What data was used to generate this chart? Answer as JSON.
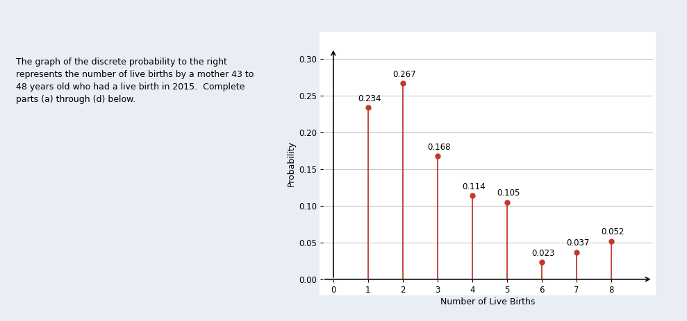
{
  "x_values": [
    1,
    2,
    3,
    4,
    5,
    6,
    7,
    8
  ],
  "y_values": [
    0.234,
    0.267,
    0.168,
    0.114,
    0.105,
    0.023,
    0.037,
    0.052
  ],
  "labels": [
    "0.234",
    "0.267",
    "0.168",
    "0.114",
    "0.105",
    "0.023",
    "0.037",
    "0.052"
  ],
  "stem_color": "#c0392b",
  "xlabel": "Number of Live Births",
  "ylabel": "Probability",
  "xlim": [
    -0.3,
    9.2
  ],
  "ylim": [
    0.0,
    0.315
  ],
  "yticks": [
    0.0,
    0.05,
    0.1,
    0.15,
    0.2,
    0.25,
    0.3
  ],
  "ytick_labels": [
    "0.00",
    "0.05",
    "0.10",
    "0.15",
    "0.20",
    "0.25",
    "0.30"
  ],
  "xticks": [
    0,
    1,
    2,
    3,
    4,
    5,
    6,
    7,
    8
  ],
  "figsize": [
    9.89,
    4.63
  ],
  "dpi": 100,
  "page_bg": "#e8eef4",
  "chart_bg": "#ffffff",
  "grid_color": "#c8c8c8",
  "left_text_lines": [
    "The graph of the discrete probability to the right",
    "represents the number of live births by a mother 43 to",
    "48 years old who had a live birth in 2015.  Complete",
    "parts (a) through (d) below."
  ],
  "label_fontsize": 8.5,
  "axis_fontsize": 9,
  "tick_fontsize": 8.5
}
